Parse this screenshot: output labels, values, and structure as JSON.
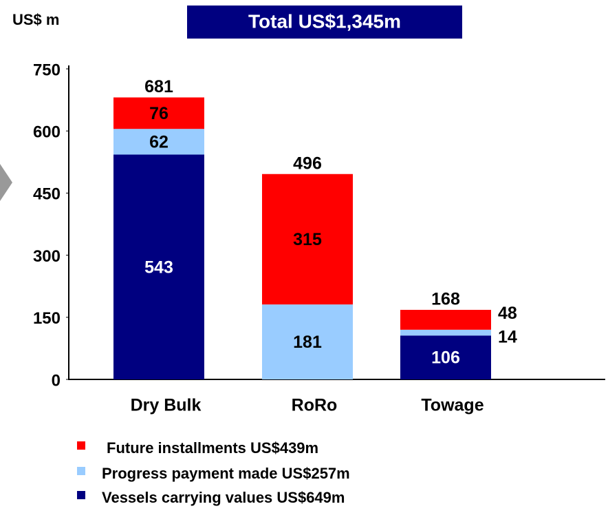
{
  "chart_data": {
    "type": "stacked_bar",
    "title": "Total US$1,345m",
    "y_axis_label": "US$ m",
    "categories": [
      "Dry Bulk",
      "RoRo",
      "Towage"
    ],
    "series": [
      {
        "name": "Vessels carrying values US$649m",
        "color": "#000080",
        "label_color": "#ffffff",
        "values": [
          543,
          null,
          106
        ]
      },
      {
        "name": "Progress payment made US$257m",
        "color": "#99ccff",
        "label_color": "#000000",
        "values": [
          62,
          181,
          14
        ]
      },
      {
        "name": "Future installments US$439m",
        "color": "#ff0000",
        "label_color": "#000000",
        "values": [
          76,
          315,
          48
        ]
      }
    ],
    "totals": [
      681,
      496,
      168
    ],
    "ylim": [
      0,
      750
    ],
    "yticks": [
      0,
      150,
      300,
      450,
      600,
      750
    ]
  }
}
